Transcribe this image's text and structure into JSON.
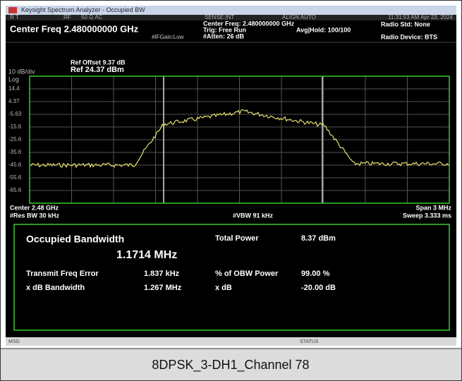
{
  "titlebar": {
    "title": "Keysight Spectrum Analyzer - Occupied BW",
    "timestamp": "11:31:53 AM Apr 23, 2024"
  },
  "status_row": {
    "mode": "R T",
    "rf": "RF",
    "input": "50 Ω  AC",
    "sense": "SENSE:INT",
    "align": "ALIGN AUTO"
  },
  "header": {
    "center_freq": "Center Freq 2.480000000 GHz",
    "center_freq_detail": "Center Freq: 2.480000000 GHz",
    "trig": "Trig: Free Run",
    "atten": "#Atten: 26 dB",
    "avg_hold": "Avg|Hold: 100/100",
    "if_gain": "#IFGain:Low",
    "radio_std": "Radio Std: None",
    "radio_device": "Radio Device: BTS"
  },
  "graph": {
    "ref_offset": "Ref Offset 9.37 dB",
    "ref_level": "Ref 24.37 dBm",
    "scale": "10 dB/div",
    "scale_type": "Log",
    "y_labels": [
      "14.4",
      "4.37",
      "-5.63",
      "-15.6",
      "-25.6",
      "-35.6",
      "-45.6",
      "-55.6",
      "-65.6"
    ],
    "center": "Center 2.48 GHz",
    "span": "Span 3 MHz",
    "res_bw": "#Res BW 30 kHz",
    "vbw": "#VBW 91 kHz",
    "sweep": "Sweep 3.333 ms"
  },
  "results": {
    "obw_label": "Occupied Bandwidth",
    "obw_value": "1.1714 MHz",
    "total_power_label": "Total Power",
    "total_power_value": "8.37 dBm",
    "freq_error_label": "Transmit Freq Error",
    "freq_error_value": "1.837 kHz",
    "obw_power_label": "% of OBW Power",
    "obw_power_value": "99.00 %",
    "xdb_bw_label": "x dB Bandwidth",
    "xdb_bw_value": "1.267 MHz",
    "xdb_label": "x dB",
    "xdb_value": "-20.00 dB"
  },
  "statusbar": {
    "msg": "MSG",
    "status": "STATUS"
  },
  "caption": "8DPSK_3-DH1_Channel 78"
}
